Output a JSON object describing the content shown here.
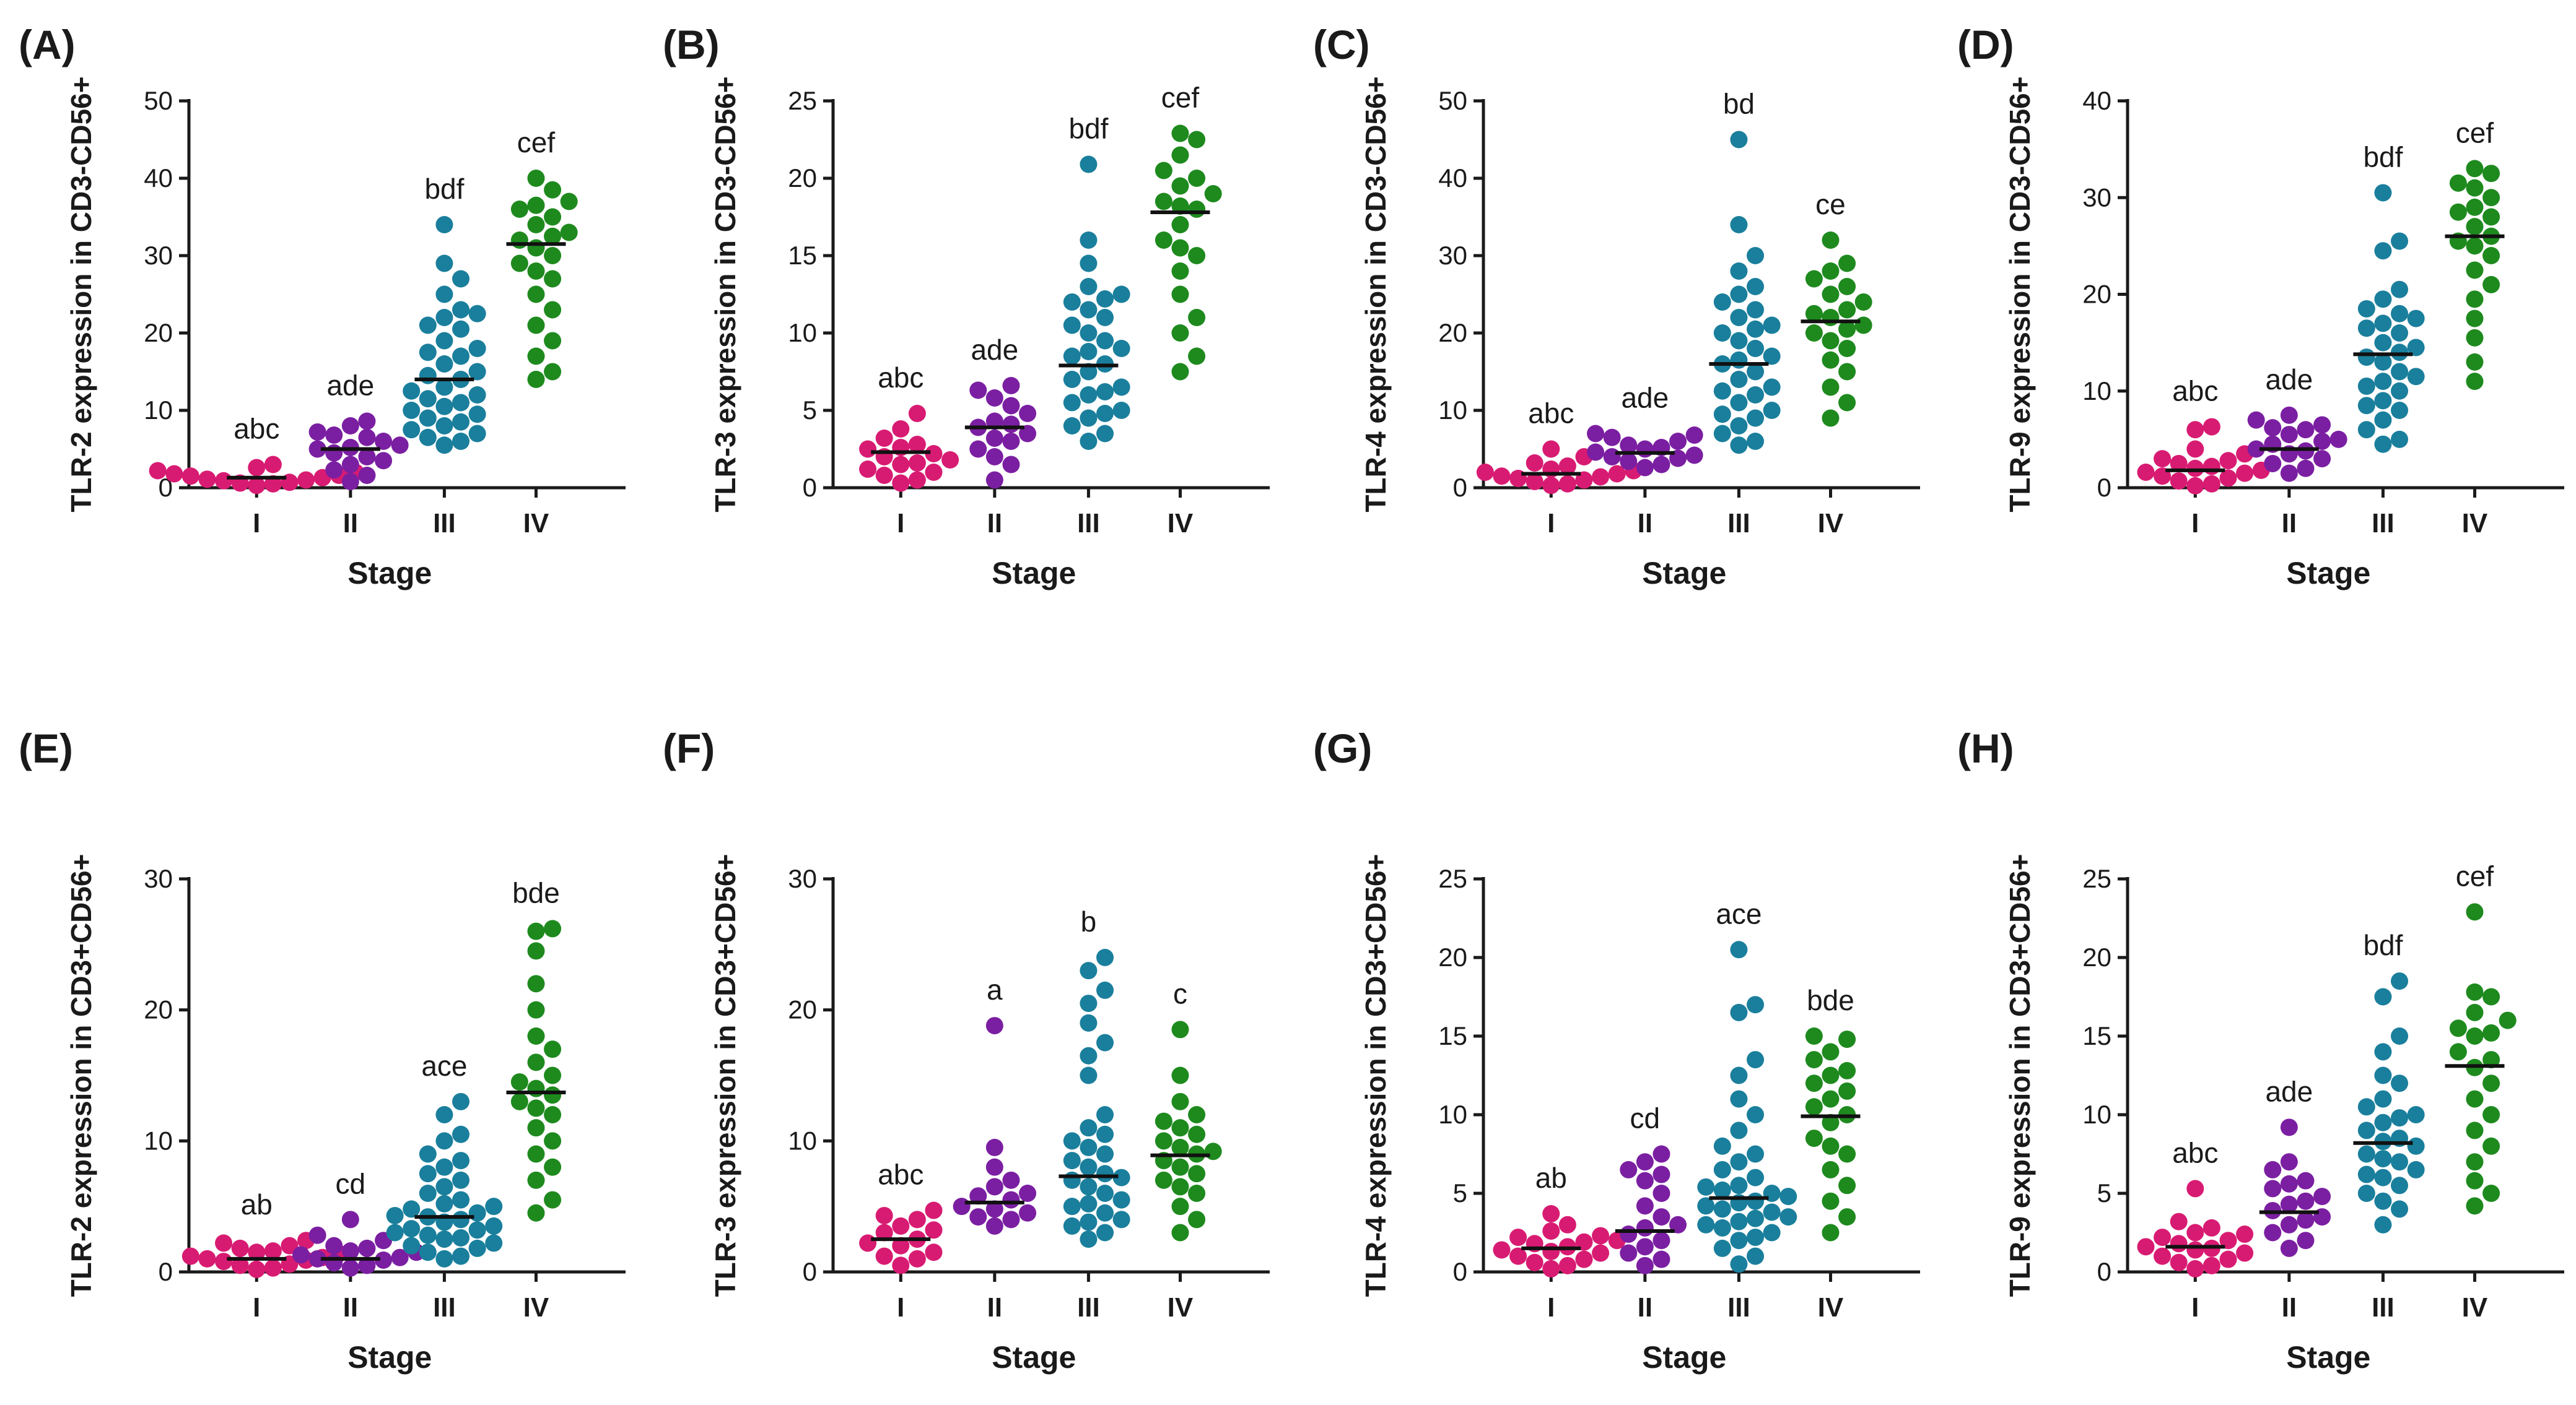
{
  "figure": {
    "x_axis_title": "Stage",
    "colors": {
      "I": "#d81b72",
      "II": "#7b1fa2",
      "III": "#1a7f9c",
      "IV": "#1e8a1e"
    }
  },
  "chart_data": [
    {
      "type": "scatter",
      "label": "(A)",
      "ylabel": "TLR-2 expression in CD3-CD56+",
      "xlabel": "Stage",
      "categories": [
        "I",
        "II",
        "III",
        "IV"
      ],
      "ylim": [
        0,
        50
      ],
      "yticks": [
        0,
        10,
        20,
        30,
        40,
        50
      ],
      "medians": [
        1.3,
        5.0,
        14.0,
        31.5
      ],
      "letters": [
        "abc",
        "ade",
        "bdf",
        "cef"
      ],
      "series": [
        {
          "name": "I",
          "values": [
            3.0,
            2.6,
            2.2,
            1.8,
            1.5,
            1.3,
            1.1,
            0.9,
            0.7,
            0.5,
            0.3,
            2.0,
            1.6,
            1.0,
            0.6
          ]
        },
        {
          "name": "II",
          "values": [
            8.6,
            8.0,
            7.2,
            6.5,
            6.0,
            5.5,
            5.0,
            4.5,
            4.0,
            3.5,
            3.0,
            2.3,
            1.6,
            0.8,
            6.8,
            5.2
          ]
        },
        {
          "name": "III",
          "values": [
            34.0,
            29.0,
            27.0,
            25.0,
            23.0,
            22.0,
            21.0,
            20.5,
            19.0,
            18.0,
            17.0,
            16.0,
            15.0,
            14.5,
            14.0,
            13.0,
            12.5,
            12.0,
            11.0,
            10.5,
            10.0,
            9.5,
            9.0,
            8.5,
            8.0,
            7.5,
            7.0,
            6.5,
            6.0,
            5.5,
            22.5,
            17.5,
            11.5
          ]
        },
        {
          "name": "IV",
          "values": [
            40.0,
            38.5,
            37.0,
            36.0,
            35.0,
            34.0,
            33.0,
            32.0,
            31.0,
            30.0,
            29.0,
            28.0,
            27.0,
            25.0,
            23.0,
            21.0,
            19.0,
            17.0,
            15.0,
            14.0,
            36.5,
            32.5
          ]
        }
      ]
    },
    {
      "type": "scatter",
      "label": "(B)",
      "ylabel": "TLR-3 expression in CD3-CD56+",
      "xlabel": "Stage",
      "categories": [
        "I",
        "II",
        "III",
        "IV"
      ],
      "ylim": [
        0,
        25
      ],
      "yticks": [
        0,
        5,
        10,
        15,
        20,
        25
      ],
      "medians": [
        2.3,
        3.9,
        7.9,
        17.8
      ],
      "letters": [
        "abc",
        "ade",
        "bdf",
        "cef"
      ],
      "series": [
        {
          "name": "I",
          "values": [
            4.8,
            3.8,
            3.2,
            2.8,
            2.5,
            2.2,
            2.0,
            1.8,
            1.5,
            1.2,
            1.0,
            0.8,
            0.5,
            0.3,
            2.6,
            1.6
          ]
        },
        {
          "name": "II",
          "values": [
            6.6,
            6.3,
            5.8,
            5.3,
            4.8,
            4.3,
            3.9,
            3.5,
            3.0,
            2.5,
            2.0,
            1.5,
            0.5,
            4.1,
            3.2
          ]
        },
        {
          "name": "III",
          "values": [
            20.9,
            16.0,
            14.5,
            13.0,
            12.5,
            12.0,
            11.5,
            11.0,
            10.5,
            10.0,
            9.5,
            9.0,
            8.5,
            8.0,
            7.5,
            7.0,
            6.5,
            6.0,
            5.5,
            5.0,
            4.5,
            4.0,
            3.5,
            3.0,
            12.2,
            8.8,
            6.2,
            4.8
          ]
        },
        {
          "name": "IV",
          "values": [
            22.9,
            22.5,
            21.5,
            20.5,
            20.0,
            19.5,
            19.0,
            18.5,
            18.0,
            17.0,
            16.0,
            15.0,
            14.0,
            12.5,
            11.0,
            10.0,
            8.5,
            7.5,
            18.2,
            15.5
          ]
        }
      ]
    },
    {
      "type": "scatter",
      "label": "(C)",
      "ylabel": "TLR-4 expression in CD3-CD56+",
      "xlabel": "Stage",
      "categories": [
        "I",
        "II",
        "III",
        "IV"
      ],
      "ylim": [
        0,
        50
      ],
      "yticks": [
        0,
        10,
        20,
        30,
        40,
        50
      ],
      "medians": [
        1.8,
        4.5,
        16.0,
        21.5
      ],
      "letters": [
        "abc",
        "ade",
        "bd",
        "ce"
      ],
      "series": [
        {
          "name": "I",
          "values": [
            5.0,
            4.0,
            3.2,
            2.8,
            2.4,
            2.0,
            1.8,
            1.5,
            1.2,
            1.0,
            0.8,
            0.5,
            0.3,
            2.2,
            1.4
          ]
        },
        {
          "name": "II",
          "values": [
            7.0,
            6.5,
            6.0,
            5.5,
            5.0,
            4.6,
            4.2,
            3.8,
            3.4,
            3.0,
            2.6,
            5.2,
            4.0,
            6.8
          ]
        },
        {
          "name": "III",
          "values": [
            45.0,
            34.0,
            30.0,
            28.0,
            26.0,
            25.0,
            24.0,
            23.0,
            22.0,
            21.0,
            20.0,
            19.0,
            18.0,
            17.0,
            16.0,
            15.0,
            14.0,
            13.0,
            12.0,
            11.0,
            10.0,
            9.0,
            8.0,
            7.0,
            6.0,
            5.5,
            20.5,
            16.5,
            12.5,
            9.5
          ]
        },
        {
          "name": "IV",
          "values": [
            32.0,
            29.0,
            28.0,
            27.0,
            26.0,
            25.0,
            24.0,
            23.0,
            22.0,
            21.0,
            20.0,
            19.0,
            18.0,
            16.5,
            15.0,
            13.0,
            11.0,
            9.0,
            22.5,
            20.5
          ]
        }
      ]
    },
    {
      "type": "scatter",
      "label": "(D)",
      "ylabel": "TLR-9 expression in CD3-CD56+",
      "xlabel": "Stage",
      "categories": [
        "I",
        "II",
        "III",
        "IV"
      ],
      "ylim": [
        0,
        40
      ],
      "yticks": [
        0,
        10,
        20,
        30,
        40
      ],
      "medians": [
        1.8,
        4.0,
        13.8,
        26.0
      ],
      "letters": [
        "abc",
        "ade",
        "bdf",
        "cef"
      ],
      "series": [
        {
          "name": "I",
          "values": [
            6.3,
            6.0,
            4.0,
            3.5,
            3.0,
            2.5,
            2.2,
            2.0,
            1.8,
            1.5,
            1.2,
            1.0,
            0.7,
            0.4,
            0.2,
            2.8,
            1.6
          ]
        },
        {
          "name": "II",
          "values": [
            7.5,
            7.0,
            6.5,
            6.0,
            5.5,
            5.0,
            4.5,
            4.0,
            3.5,
            3.0,
            2.5,
            2.0,
            1.5,
            4.8,
            3.8,
            6.2
          ]
        },
        {
          "name": "III",
          "values": [
            30.5,
            25.5,
            24.5,
            20.5,
            19.5,
            18.5,
            18.0,
            17.0,
            16.5,
            16.0,
            15.0,
            14.0,
            13.5,
            13.0,
            12.0,
            11.0,
            10.5,
            10.0,
            9.0,
            8.0,
            7.0,
            6.0,
            5.0,
            4.5,
            17.5,
            14.5,
            11.5,
            8.5
          ]
        },
        {
          "name": "IV",
          "values": [
            33.0,
            32.5,
            31.5,
            31.0,
            30.0,
            29.0,
            28.0,
            27.0,
            26.0,
            25.0,
            24.0,
            22.5,
            21.0,
            19.5,
            17.5,
            15.5,
            13.0,
            11.0,
            28.5,
            25.5
          ]
        }
      ]
    },
    {
      "type": "scatter",
      "label": "(E)",
      "ylabel": "TLR-2 expression in CD3+CD56+",
      "xlabel": "Stage",
      "categories": [
        "I",
        "II",
        "III",
        "IV"
      ],
      "ylim": [
        0,
        30
      ],
      "yticks": [
        0,
        10,
        20,
        30
      ],
      "medians": [
        1.0,
        1.0,
        4.2,
        13.7
      ],
      "letters": [
        "ab",
        "cd",
        "ace",
        "bde"
      ],
      "series": [
        {
          "name": "I",
          "values": [
            2.4,
            2.2,
            2.0,
            1.8,
            1.6,
            1.4,
            1.2,
            1.0,
            0.9,
            0.8,
            0.6,
            0.5,
            0.3,
            0.2,
            1.5,
            1.1
          ]
        },
        {
          "name": "II",
          "values": [
            4.0,
            2.8,
            2.4,
            2.0,
            1.8,
            1.5,
            1.3,
            1.1,
            0.9,
            0.7,
            0.5,
            0.3,
            1.6,
            1.0
          ]
        },
        {
          "name": "III",
          "values": [
            13.0,
            12.0,
            10.5,
            10.0,
            9.0,
            8.5,
            8.0,
            7.5,
            7.0,
            6.5,
            6.0,
            5.5,
            5.0,
            4.8,
            4.5,
            4.2,
            4.0,
            3.8,
            3.5,
            3.2,
            3.0,
            2.8,
            2.5,
            2.2,
            2.0,
            1.8,
            1.5,
            1.2,
            1.0,
            5.2,
            4.3,
            3.3,
            2.6
          ]
        },
        {
          "name": "IV",
          "values": [
            26.2,
            26.0,
            24.5,
            22.0,
            20.0,
            18.0,
            17.0,
            16.0,
            15.0,
            14.0,
            13.5,
            13.0,
            12.0,
            11.0,
            10.0,
            9.0,
            8.0,
            7.0,
            5.5,
            4.5,
            14.5,
            12.5
          ]
        }
      ]
    },
    {
      "type": "scatter",
      "label": "(F)",
      "ylabel": "TLR-3 expression in CD3+CD56+",
      "xlabel": "Stage",
      "categories": [
        "I",
        "II",
        "III",
        "IV"
      ],
      "ylim": [
        0,
        30
      ],
      "yticks": [
        0,
        10,
        20,
        30
      ],
      "medians": [
        2.5,
        5.3,
        7.3,
        8.9
      ],
      "letters": [
        "abc",
        "a",
        "b",
        "c"
      ],
      "series": [
        {
          "name": "I",
          "values": [
            4.7,
            4.3,
            4.0,
            3.5,
            3.0,
            2.5,
            2.0,
            1.5,
            1.0,
            0.5,
            3.2,
            2.2,
            1.2
          ]
        },
        {
          "name": "II",
          "values": [
            18.8,
            9.5,
            8.0,
            7.0,
            6.5,
            6.0,
            5.5,
            5.0,
            4.8,
            4.5,
            4.0,
            3.5,
            5.8,
            4.2
          ]
        },
        {
          "name": "III",
          "values": [
            24.0,
            23.0,
            21.5,
            20.5,
            19.0,
            17.5,
            16.5,
            15.0,
            12.0,
            11.0,
            10.5,
            10.0,
            9.5,
            9.0,
            8.5,
            8.0,
            7.5,
            7.0,
            6.5,
            6.0,
            5.5,
            5.0,
            4.5,
            4.0,
            3.5,
            3.0,
            2.5,
            7.2,
            5.2,
            3.8
          ]
        },
        {
          "name": "IV",
          "values": [
            18.5,
            15.0,
            13.0,
            12.0,
            11.5,
            11.0,
            10.5,
            10.0,
            9.5,
            9.0,
            8.5,
            8.0,
            7.5,
            7.0,
            6.5,
            6.0,
            5.0,
            4.0,
            3.0,
            9.2
          ]
        }
      ]
    },
    {
      "type": "scatter",
      "label": "(G)",
      "ylabel": "TLR-4 expression in CD3+CD56+",
      "xlabel": "Stage",
      "categories": [
        "I",
        "II",
        "III",
        "IV"
      ],
      "ylim": [
        0,
        25
      ],
      "yticks": [
        0,
        5,
        10,
        15,
        20,
        25
      ],
      "medians": [
        1.5,
        2.6,
        4.7,
        9.9
      ],
      "letters": [
        "ab",
        "cd",
        "ace",
        "bde"
      ],
      "series": [
        {
          "name": "I",
          "values": [
            3.7,
            3.0,
            2.6,
            2.3,
            2.0,
            1.8,
            1.6,
            1.4,
            1.2,
            1.0,
            0.8,
            0.6,
            0.4,
            0.2,
            1.9,
            1.3,
            2.2
          ]
        },
        {
          "name": "II",
          "values": [
            7.5,
            7.0,
            6.5,
            5.8,
            5.0,
            4.2,
            3.5,
            2.8,
            2.4,
            2.0,
            1.6,
            1.2,
            0.8,
            0.4,
            6.2,
            3.0
          ]
        },
        {
          "name": "III",
          "values": [
            20.5,
            17.0,
            16.5,
            13.5,
            12.5,
            11.0,
            10.0,
            9.0,
            8.0,
            7.5,
            7.0,
            6.5,
            6.0,
            5.5,
            5.2,
            5.0,
            4.8,
            4.5,
            4.2,
            4.0,
            3.8,
            3.5,
            3.2,
            3.0,
            2.8,
            2.5,
            2.0,
            1.5,
            1.0,
            0.5,
            5.4,
            4.4,
            3.4,
            2.2
          ]
        },
        {
          "name": "IV",
          "values": [
            15.0,
            14.8,
            14.0,
            13.5,
            12.5,
            12.0,
            11.5,
            11.0,
            10.5,
            10.0,
            9.5,
            8.5,
            7.5,
            6.5,
            5.5,
            4.5,
            3.5,
            2.5,
            12.8,
            8.0
          ]
        }
      ]
    },
    {
      "type": "scatter",
      "label": "(H)",
      "ylabel": "TLR-9 expression in CD3+CD56+",
      "xlabel": "Stage",
      "categories": [
        "I",
        "II",
        "III",
        "IV"
      ],
      "ylim": [
        0,
        25
      ],
      "yticks": [
        0,
        5,
        10,
        15,
        20,
        25
      ],
      "medians": [
        1.6,
        3.8,
        8.2,
        13.1
      ],
      "letters": [
        "abc",
        "ade",
        "bdf",
        "cef"
      ],
      "series": [
        {
          "name": "I",
          "values": [
            5.3,
            3.2,
            2.8,
            2.5,
            2.2,
            2.0,
            1.8,
            1.6,
            1.4,
            1.2,
            1.0,
            0.8,
            0.6,
            0.4,
            0.2,
            1.5,
            2.4
          ]
        },
        {
          "name": "II",
          "values": [
            9.2,
            7.0,
            6.5,
            5.8,
            5.3,
            4.8,
            4.3,
            3.9,
            3.5,
            3.0,
            2.5,
            2.0,
            1.5,
            4.5,
            3.3,
            5.6
          ]
        },
        {
          "name": "III",
          "values": [
            18.5,
            17.5,
            15.0,
            14.0,
            12.5,
            12.0,
            11.0,
            10.5,
            10.0,
            9.5,
            9.0,
            8.5,
            8.0,
            7.5,
            7.0,
            6.5,
            6.0,
            5.5,
            5.0,
            4.5,
            4.0,
            3.0,
            8.3,
            7.2,
            9.8,
            6.2
          ]
        },
        {
          "name": "IV",
          "values": [
            22.9,
            17.8,
            17.5,
            16.5,
            16.0,
            15.5,
            15.0,
            14.0,
            13.5,
            13.0,
            12.0,
            11.0,
            10.0,
            9.0,
            8.0,
            7.0,
            5.8,
            5.0,
            4.2,
            15.2
          ]
        }
      ]
    }
  ]
}
